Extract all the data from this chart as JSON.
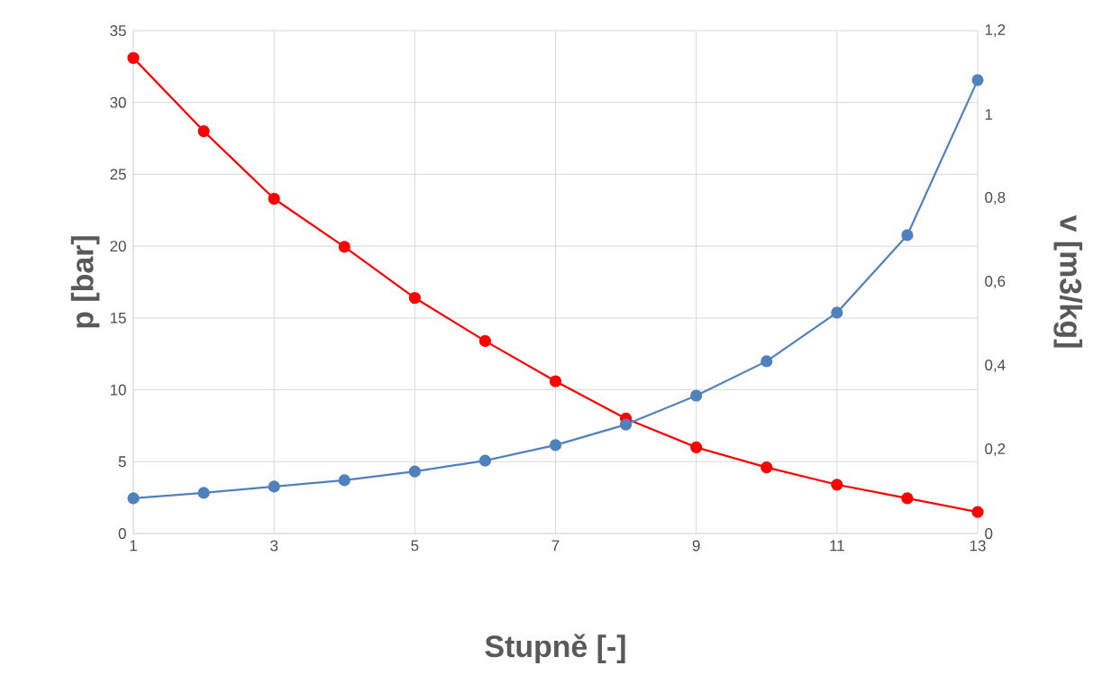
{
  "chart_data": {
    "type": "line",
    "xlabel": "Stupně [-]",
    "ylabel": "p [bar]",
    "y2label": "v [m3/kg]",
    "x": [
      1,
      2,
      3,
      4,
      5,
      6,
      7,
      8,
      9,
      10,
      11,
      12,
      13
    ],
    "series": [
      {
        "color": "#ff0000",
        "values": [
          33.1,
          28.0,
          23.3,
          19.95,
          16.4,
          13.4,
          10.6,
          8.0,
          6.0,
          4.6,
          3.4,
          2.45,
          1.5
        ]
      },
      {
        "color": "#4f81bd",
        "axis": "y2",
        "values": [
          0.084,
          0.097,
          0.112,
          0.127,
          0.148,
          0.174,
          0.211,
          0.26,
          0.329,
          0.411,
          0.527,
          0.712,
          1.082
        ]
      }
    ],
    "xlim": [
      1,
      13
    ],
    "xticks": [
      1,
      3,
      5,
      7,
      9,
      11,
      13
    ],
    "ylim": [
      0,
      35
    ],
    "yticks": [
      0,
      5,
      10,
      15,
      20,
      25,
      30,
      35
    ],
    "y2lim": [
      0,
      1.2
    ],
    "y2ticks": [
      0,
      {
        "value": 0.2,
        "label": "0,2"
      },
      {
        "value": 0.4,
        "label": "0,4"
      },
      {
        "value": 0.6,
        "label": "0,6"
      },
      {
        "value": 0.8,
        "label": "0,8"
      },
      1,
      {
        "value": 1.2,
        "label": "1,2"
      }
    ],
    "grid": true,
    "marker": "circle",
    "line_style": "solid"
  }
}
